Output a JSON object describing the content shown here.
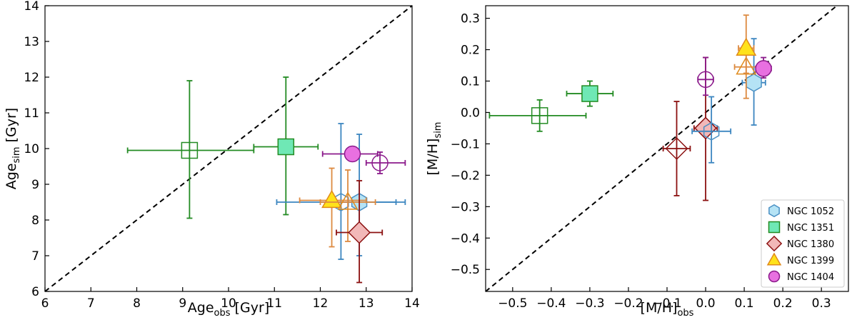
{
  "chart_data": [
    {
      "type": "scatter",
      "xlabel": "Age",
      "xlabel_sub": "obs",
      "xlabel_unit": " [Gyr]",
      "ylabel": "Age",
      "ylabel_sub": "sim",
      "ylabel_unit": " [Gyr]",
      "xlim": [
        6,
        14
      ],
      "ylim": [
        6,
        14
      ],
      "xticks": [
        6,
        7,
        8,
        9,
        10,
        11,
        12,
        13,
        14
      ],
      "yticks": [
        6,
        7,
        8,
        9,
        10,
        11,
        12,
        13,
        14
      ],
      "tick_labels_x": [
        "6",
        "7",
        "8",
        "9",
        "10",
        "11",
        "12",
        "13",
        "14"
      ],
      "tick_labels_y": [
        "6",
        "7",
        "8",
        "9",
        "10",
        "11",
        "12",
        "13",
        "14"
      ],
      "one_to_one_line": true,
      "points": [
        {
          "galaxy": "NGC 1351",
          "x": 9.15,
          "xerr_lo": 1.35,
          "xerr_hi": 1.4,
          "y": 9.95,
          "yerr_lo": 1.9,
          "yerr_hi": 1.95,
          "filled": false
        },
        {
          "galaxy": "NGC 1351",
          "x": 11.25,
          "xerr_lo": 0.7,
          "xerr_hi": 0.7,
          "y": 10.05,
          "yerr_lo": 1.9,
          "yerr_hi": 1.95,
          "filled": true
        },
        {
          "galaxy": "NGC 1052",
          "x": 12.45,
          "xerr_lo": 1.4,
          "xerr_hi": 1.2,
          "y": 8.5,
          "yerr_lo": 1.6,
          "yerr_hi": 2.2,
          "filled": false
        },
        {
          "galaxy": "NGC 1052",
          "x": 12.85,
          "xerr_lo": 0.6,
          "xerr_hi": 1.0,
          "y": 8.5,
          "yerr_lo": 1.5,
          "yerr_hi": 1.9,
          "filled": true
        },
        {
          "galaxy": "NGC 1399",
          "x": 12.25,
          "xerr_lo": 0.7,
          "xerr_hi": 0.75,
          "y": 8.55,
          "yerr_lo": 1.3,
          "yerr_hi": 0.9,
          "filled": true
        },
        {
          "galaxy": "NGC 1399",
          "x": 12.6,
          "xerr_lo": 0.6,
          "xerr_hi": 0.6,
          "y": 8.5,
          "yerr_lo": 1.1,
          "yerr_hi": 0.9,
          "filled": false
        },
        {
          "galaxy": "NGC 1380",
          "x": 12.85,
          "xerr_lo": 0.5,
          "xerr_hi": 0.5,
          "y": 7.65,
          "yerr_lo": 1.4,
          "yerr_hi": 1.45,
          "filled": true
        },
        {
          "galaxy": "NGC 1404",
          "x": 12.7,
          "xerr_lo": 0.65,
          "xerr_hi": 0.55,
          "y": 9.85,
          "yerr_lo": 0.15,
          "yerr_hi": 0.15,
          "filled": true
        },
        {
          "galaxy": "NGC 1404",
          "x": 13.3,
          "xerr_lo": 0.3,
          "xerr_hi": 0.55,
          "y": 9.6,
          "yerr_lo": 0.3,
          "yerr_hi": 0.3,
          "filled": false
        }
      ]
    },
    {
      "type": "scatter",
      "xlabel": "[M/H]",
      "xlabel_sub": "obs",
      "xlabel_unit": "",
      "ylabel": "[M/H]",
      "ylabel_sub": "sim",
      "ylabel_unit": "",
      "xlim": [
        -0.57,
        0.37
      ],
      "ylim": [
        -0.57,
        0.34
      ],
      "xticks": [
        -0.5,
        -0.4,
        -0.3,
        -0.2,
        -0.1,
        0.0,
        0.1,
        0.2,
        0.3
      ],
      "yticks": [
        -0.5,
        -0.4,
        -0.3,
        -0.2,
        -0.1,
        0.0,
        0.1,
        0.2,
        0.3
      ],
      "tick_labels_x": [
        "−0.5",
        "−0.4",
        "−0.3",
        "−0.2",
        "−0.1",
        "0.0",
        "0.1",
        "0.2",
        "0.3"
      ],
      "tick_labels_y": [
        "−0.5",
        "−0.4",
        "−0.3",
        "−0.2",
        "−0.1",
        "0.0",
        "0.1",
        "0.2",
        "0.3"
      ],
      "one_to_one_line": true,
      "points": [
        {
          "galaxy": "NGC 1351",
          "x": -0.43,
          "xerr_lo": 0.13,
          "xerr_hi": 0.12,
          "y": -0.01,
          "yerr_lo": 0.05,
          "yerr_hi": 0.05,
          "filled": false
        },
        {
          "galaxy": "NGC 1351",
          "x": -0.3,
          "xerr_lo": 0.06,
          "xerr_hi": 0.06,
          "y": 0.06,
          "yerr_lo": 0.04,
          "yerr_hi": 0.04,
          "filled": true
        },
        {
          "galaxy": "NGC 1380",
          "x": -0.075,
          "xerr_lo": 0.035,
          "xerr_hi": 0.035,
          "y": -0.115,
          "yerr_lo": 0.15,
          "yerr_hi": 0.15,
          "filled": false
        },
        {
          "galaxy": "NGC 1380",
          "x": 0.0,
          "xerr_lo": 0.03,
          "xerr_hi": 0.03,
          "y": -0.05,
          "yerr_lo": 0.23,
          "yerr_hi": 0.225,
          "filled": true
        },
        {
          "galaxy": "NGC 1052",
          "x": 0.015,
          "xerr_lo": 0.05,
          "xerr_hi": 0.05,
          "y": -0.06,
          "yerr_lo": 0.1,
          "yerr_hi": 0.11,
          "filled": false
        },
        {
          "galaxy": "NGC 1052",
          "x": 0.125,
          "xerr_lo": 0.03,
          "xerr_hi": 0.03,
          "y": 0.095,
          "yerr_lo": 0.135,
          "yerr_hi": 0.14,
          "filled": true
        },
        {
          "galaxy": "NGC 1399",
          "x": 0.105,
          "xerr_lo": 0.03,
          "xerr_hi": 0.03,
          "y": 0.145,
          "yerr_lo": 0.1,
          "yerr_hi": 0.06,
          "filled": false
        },
        {
          "galaxy": "NGC 1399",
          "x": 0.105,
          "xerr_lo": 0.02,
          "xerr_hi": 0.02,
          "y": 0.205,
          "yerr_lo": 0.08,
          "yerr_hi": 0.105,
          "filled": true
        },
        {
          "galaxy": "NGC 1404",
          "x": 0.0,
          "xerr_lo": 0.02,
          "xerr_hi": 0.02,
          "y": 0.105,
          "yerr_lo": 0.05,
          "yerr_hi": 0.07,
          "filled": false
        },
        {
          "galaxy": "NGC 1404",
          "x": 0.15,
          "xerr_lo": 0.02,
          "xerr_hi": 0.02,
          "y": 0.14,
          "yerr_lo": 0.03,
          "yerr_hi": 0.035,
          "filled": true
        }
      ],
      "legend": {
        "placement": "lower-right",
        "entries": [
          {
            "label": "NGC 1052",
            "galaxy": "NGC 1052"
          },
          {
            "label": "NGC 1351",
            "galaxy": "NGC 1351"
          },
          {
            "label": "NGC 1380",
            "galaxy": "NGC 1380"
          },
          {
            "label": "NGC 1399",
            "galaxy": "NGC 1399"
          },
          {
            "label": "NGC 1404",
            "galaxy": "NGC 1404"
          }
        ]
      }
    }
  ],
  "styles": {
    "NGC 1052": {
      "marker": "hexagon",
      "fill": "#b5e3f5",
      "edge": "#4a90c4",
      "err": "#3c86c0"
    },
    "NGC 1351": {
      "marker": "square",
      "fill": "#6fe8b5",
      "edge": "#238b23",
      "err": "#238b23"
    },
    "NGC 1380": {
      "marker": "diamond",
      "fill": "#f2b8b8",
      "edge": "#8b1010",
      "err": "#8b1010"
    },
    "NGC 1399": {
      "marker": "triangle",
      "fill": "#ffe21a",
      "edge": "#e08a1a",
      "err": "#dd8a40"
    },
    "NGC 1404": {
      "marker": "circle",
      "fill": "#e870e0",
      "edge": "#8b1a8b",
      "err": "#8b1a8b"
    }
  }
}
